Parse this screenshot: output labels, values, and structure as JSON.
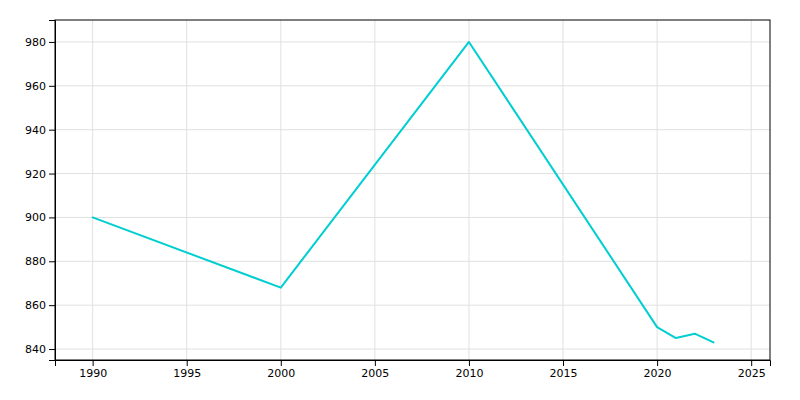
{
  "chart_data": {
    "type": "line",
    "x": [
      1990,
      2000,
      2010,
      2020,
      2021,
      2022,
      2023
    ],
    "values": [
      900,
      868,
      980,
      850,
      845,
      847,
      843
    ],
    "color": "#00CED1",
    "xlim": [
      1988,
      2026
    ],
    "ylim": [
      835,
      990
    ],
    "xticks": [
      1990,
      1995,
      2000,
      2005,
      2010,
      2015,
      2020,
      2025
    ],
    "yticks": [
      840,
      860,
      880,
      900,
      920,
      940,
      960,
      980
    ],
    "grid": true
  }
}
